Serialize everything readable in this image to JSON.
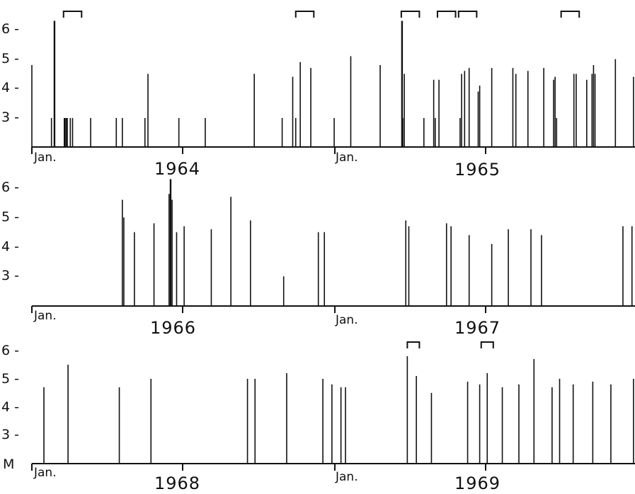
{
  "chart_data": [
    {
      "type": "bar",
      "panel": "top",
      "x_start_year": 1964,
      "xlim_years": [
        0,
        2
      ],
      "ylim": [
        2,
        6.6
      ],
      "y_ticks": [
        3,
        4,
        5,
        6
      ],
      "x_labels": [
        {
          "text": "Jan.",
          "t": 0
        },
        {
          "text": "1964",
          "t": 1
        },
        {
          "text": "Jan.",
          "t": 1
        },
        {
          "text": "1965",
          "t": 2
        }
      ],
      "events": [
        {
          "t": 0.0,
          "m": 4.8
        },
        {
          "t": 0.13,
          "m": 3.0
        },
        {
          "t": 0.15,
          "m": 6.3
        },
        {
          "t": 0.215,
          "m": 3.0
        },
        {
          "t": 0.22,
          "m": 3.0
        },
        {
          "t": 0.228,
          "m": 3.0
        },
        {
          "t": 0.235,
          "m": 3.0
        },
        {
          "t": 0.255,
          "m": 3.0
        },
        {
          "t": 0.27,
          "m": 3.0
        },
        {
          "t": 0.39,
          "m": 3.0
        },
        {
          "t": 0.56,
          "m": 3.0
        },
        {
          "t": 0.6,
          "m": 3.0
        },
        {
          "t": 0.75,
          "m": 3.0
        },
        {
          "t": 0.77,
          "m": 4.5
        },
        {
          "t": 0.975,
          "m": 3.0
        },
        {
          "t": 1.15,
          "m": 3.0
        },
        {
          "t": 1.475,
          "m": 4.5
        },
        {
          "t": 1.66,
          "m": 3.0
        },
        {
          "t": 1.73,
          "m": 4.4
        },
        {
          "t": 1.75,
          "m": 3.0
        },
        {
          "t": 1.78,
          "m": 4.9
        },
        {
          "t": 1.85,
          "m": 4.7
        },
        {
          "t": 2.005,
          "m": 3.0
        },
        {
          "t": 2.115,
          "m": 5.1
        },
        {
          "t": 2.31,
          "m": 4.8
        },
        {
          "t": 2.455,
          "m": 6.3
        },
        {
          "t": 2.46,
          "m": 3.0
        },
        {
          "t": 2.47,
          "m": 4.5
        },
        {
          "t": 2.6,
          "m": 3.0
        },
        {
          "t": 2.665,
          "m": 4.3
        },
        {
          "t": 2.675,
          "m": 3.0
        },
        {
          "t": 2.7,
          "m": 4.3
        },
        {
          "t": 2.84,
          "m": 3.0
        },
        {
          "t": 2.85,
          "m": 4.5
        },
        {
          "t": 2.87,
          "m": 4.6
        },
        {
          "t": 2.9,
          "m": 4.7
        },
        {
          "t": 2.96,
          "m": 3.9
        },
        {
          "t": 2.97,
          "m": 4.1
        },
        {
          "t": 3.05,
          "m": 4.7
        },
        {
          "t": 3.19,
          "m": 4.7
        },
        {
          "t": 3.21,
          "m": 4.5
        },
        {
          "t": 3.29,
          "m": 4.6
        },
        {
          "t": 3.395,
          "m": 4.7
        },
        {
          "t": 3.46,
          "m": 4.3
        },
        {
          "t": 3.47,
          "m": 4.4
        },
        {
          "t": 3.48,
          "m": 3.0
        },
        {
          "t": 3.595,
          "m": 4.5
        },
        {
          "t": 3.61,
          "m": 4.5
        },
        {
          "t": 3.68,
          "m": 4.3
        },
        {
          "t": 3.715,
          "m": 4.5
        },
        {
          "t": 3.725,
          "m": 4.8
        },
        {
          "t": 3.735,
          "m": 4.5
        },
        {
          "t": 3.87,
          "m": 5.0
        },
        {
          "t": 3.99,
          "m": 4.4
        }
      ],
      "brackets": [
        0.21,
        1.75,
        2.45,
        2.69,
        2.83,
        3.51
      ],
      "bracket_width": 0.12
    },
    {
      "type": "bar",
      "panel": "middle",
      "x_start_year": 1966,
      "xlim_years": [
        0,
        2
      ],
      "ylim": [
        2,
        6.6
      ],
      "y_ticks": [
        3,
        4,
        5,
        6
      ],
      "x_labels": [
        {
          "text": "Jan.",
          "t": 0
        },
        {
          "text": "1966",
          "t": 1
        },
        {
          "text": "Jan.",
          "t": 1
        },
        {
          "text": "1967",
          "t": 2
        }
      ],
      "events": [
        {
          "t": 0.6,
          "m": 5.6
        },
        {
          "t": 0.61,
          "m": 5.0
        },
        {
          "t": 0.68,
          "m": 4.5
        },
        {
          "t": 0.81,
          "m": 4.8
        },
        {
          "t": 0.91,
          "m": 5.8
        },
        {
          "t": 0.92,
          "m": 6.3
        },
        {
          "t": 0.93,
          "m": 5.6
        },
        {
          "t": 0.96,
          "m": 4.5
        },
        {
          "t": 1.01,
          "m": 4.7
        },
        {
          "t": 1.19,
          "m": 4.6
        },
        {
          "t": 1.32,
          "m": 5.7
        },
        {
          "t": 1.45,
          "m": 4.9
        },
        {
          "t": 1.67,
          "m": 3.0
        },
        {
          "t": 1.9,
          "m": 4.5
        },
        {
          "t": 1.94,
          "m": 4.5
        },
        {
          "t": 2.48,
          "m": 4.9
        },
        {
          "t": 2.5,
          "m": 4.7
        },
        {
          "t": 2.75,
          "m": 4.8
        },
        {
          "t": 2.78,
          "m": 4.7
        },
        {
          "t": 2.9,
          "m": 4.4
        },
        {
          "t": 3.05,
          "m": 4.1
        },
        {
          "t": 3.16,
          "m": 4.6
        },
        {
          "t": 3.31,
          "m": 4.6
        },
        {
          "t": 3.38,
          "m": 4.4
        },
        {
          "t": 3.92,
          "m": 4.7
        },
        {
          "t": 3.98,
          "m": 4.7
        }
      ],
      "brackets": [],
      "bracket_width": 0.12
    },
    {
      "type": "bar",
      "panel": "bottom",
      "x_start_year": 1968,
      "xlim_years": [
        0,
        2
      ],
      "ylim": [
        2,
        6.6
      ],
      "y_ticks": [
        3,
        4,
        5,
        6
      ],
      "y_axis_letter": "M",
      "x_labels": [
        {
          "text": "Jan.",
          "t": 0
        },
        {
          "text": "1968",
          "t": 1
        },
        {
          "text": "Jan.",
          "t": 1
        },
        {
          "text": "1969",
          "t": 2
        }
      ],
      "events": [
        {
          "t": 0.08,
          "m": 4.7
        },
        {
          "t": 0.24,
          "m": 5.5
        },
        {
          "t": 0.58,
          "m": 4.7
        },
        {
          "t": 0.79,
          "m": 5.0
        },
        {
          "t": 1.43,
          "m": 5.0
        },
        {
          "t": 1.48,
          "m": 5.0
        },
        {
          "t": 1.69,
          "m": 5.2
        },
        {
          "t": 1.93,
          "m": 5.0
        },
        {
          "t": 1.99,
          "m": 4.8
        },
        {
          "t": 2.05,
          "m": 4.7
        },
        {
          "t": 2.08,
          "m": 4.7
        },
        {
          "t": 2.49,
          "m": 5.8
        },
        {
          "t": 2.55,
          "m": 5.1
        },
        {
          "t": 2.65,
          "m": 4.5
        },
        {
          "t": 2.89,
          "m": 4.9
        },
        {
          "t": 2.97,
          "m": 4.8
        },
        {
          "t": 3.02,
          "m": 5.2
        },
        {
          "t": 3.12,
          "m": 4.7
        },
        {
          "t": 3.23,
          "m": 4.8
        },
        {
          "t": 3.33,
          "m": 5.7
        },
        {
          "t": 3.45,
          "m": 4.7
        },
        {
          "t": 3.5,
          "m": 5.0
        },
        {
          "t": 3.59,
          "m": 4.8
        },
        {
          "t": 3.72,
          "m": 4.9
        },
        {
          "t": 3.84,
          "m": 4.8
        },
        {
          "t": 3.99,
          "m": 5.0
        }
      ],
      "brackets": [
        2.49,
        2.98
      ],
      "bracket_width": 0.08
    }
  ],
  "labels": {
    "top": {
      "jan1": "Jan.",
      "year1": "1964",
      "jan2": "Jan.",
      "year2": "1965"
    },
    "middle": {
      "jan1": "Jan.",
      "year1": "1966",
      "jan2": "Jan.",
      "year2": "1967"
    },
    "bottom": {
      "jan1": "Jan.",
      "year1": "1968",
      "jan2": "Jan.",
      "year2": "1969",
      "m": "M"
    },
    "yticks": [
      "3 -",
      "4 -",
      "5 -",
      "6 -"
    ]
  }
}
